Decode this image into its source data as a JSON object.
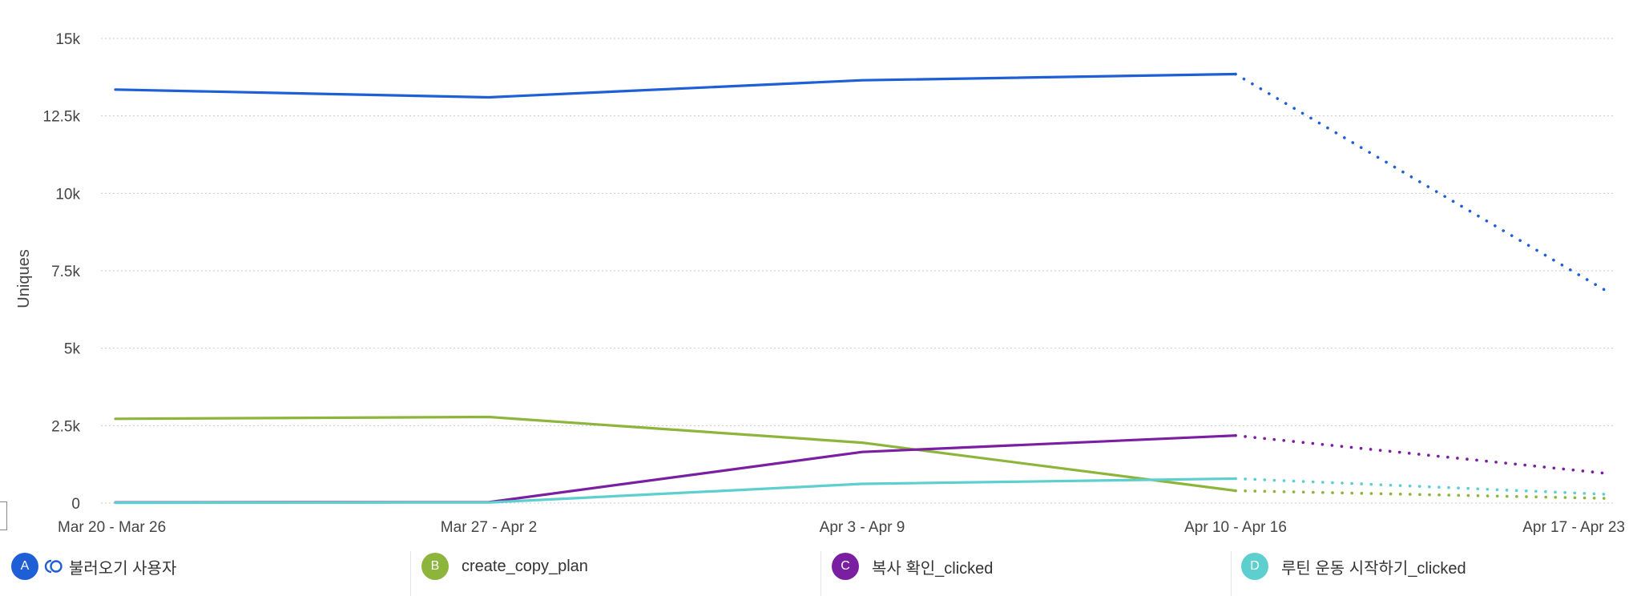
{
  "chart_data": {
    "type": "line",
    "ylabel": "Uniques",
    "xlabel": "",
    "ylim": [
      0,
      15000
    ],
    "yticks": [
      0,
      2500,
      5000,
      7500,
      10000,
      12500,
      15000
    ],
    "ytick_labels": [
      "0",
      "2.5k",
      "5k",
      "7.5k",
      "10k",
      "12.5k",
      "15k"
    ],
    "categories": [
      "Mar 20 - Mar 26",
      "Mar 27 - Apr 2",
      "Apr 3 - Apr 9",
      "Apr 10 - Apr 16",
      "Apr 17 - Apr 23"
    ],
    "partial_from_index": 3,
    "grid": true,
    "series": [
      {
        "key": "A",
        "name": "불러오기 사용자",
        "color": "#1f5fd6",
        "cohort": true,
        "values": [
          13350,
          13100,
          13650,
          13850,
          6800
        ]
      },
      {
        "key": "B",
        "name": "create_copy_plan",
        "color": "#8db53c",
        "cohort": false,
        "values": [
          2720,
          2780,
          1950,
          400,
          150
        ]
      },
      {
        "key": "C",
        "name": "복사 확인_clicked",
        "color": "#7b1fa2",
        "cohort": false,
        "values": [
          20,
          30,
          1650,
          2180,
          950
        ]
      },
      {
        "key": "D",
        "name": "루틴 운동 시작하기_clicked",
        "color": "#5ecfcf",
        "cohort": false,
        "values": [
          10,
          20,
          620,
          790,
          280
        ]
      }
    ]
  }
}
